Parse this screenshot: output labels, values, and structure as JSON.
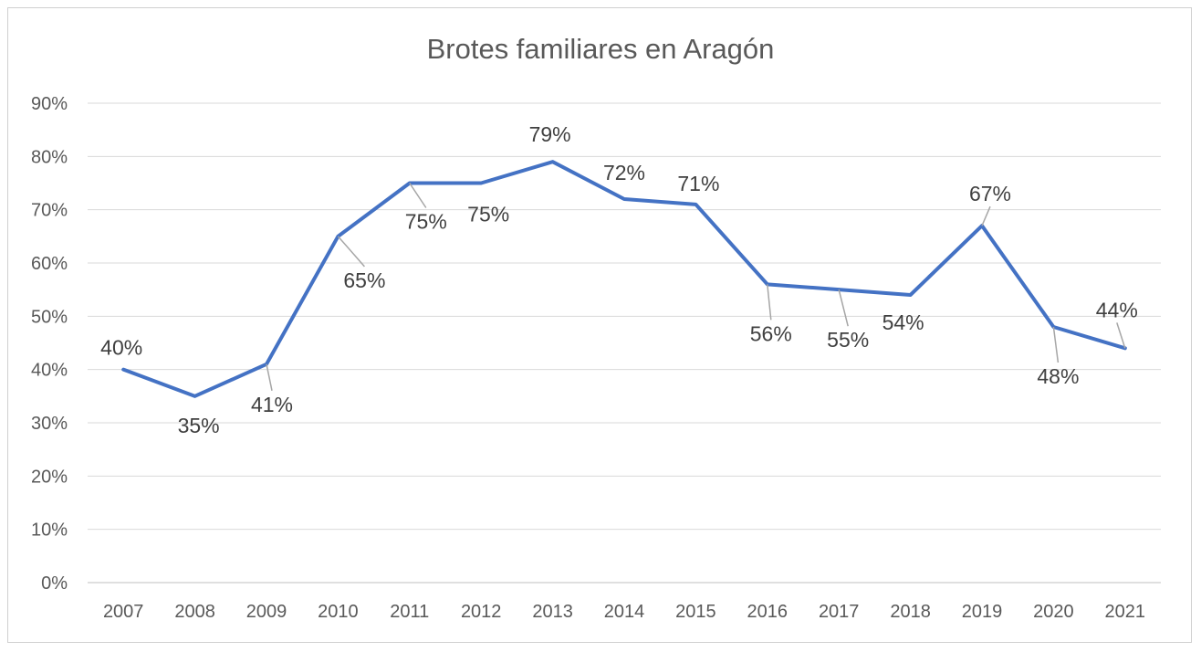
{
  "chart_data": {
    "type": "line",
    "title": "Brotes familiares en Aragón",
    "categories": [
      "2007",
      "2008",
      "2009",
      "2010",
      "2011",
      "2012",
      "2013",
      "2014",
      "2015",
      "2016",
      "2017",
      "2018",
      "2019",
      "2020",
      "2021"
    ],
    "series": [
      {
        "values": [
          0.4,
          0.35,
          0.41,
          0.65,
          0.75,
          0.75,
          0.79,
          0.72,
          0.71,
          0.56,
          0.55,
          0.54,
          0.67,
          0.48,
          0.44
        ],
        "labels": [
          "40%",
          "35%",
          "41%",
          "65%",
          "75%",
          "75%",
          "79%",
          "72%",
          "71%",
          "56%",
          "55%",
          "54%",
          "67%",
          "48%",
          "44%"
        ],
        "color": "#4472C4"
      }
    ],
    "y_ticks": [
      "0%",
      "10%",
      "20%",
      "30%",
      "40%",
      "50%",
      "60%",
      "70%",
      "80%",
      "90%"
    ],
    "ylim": [
      0,
      0.9
    ],
    "grid": true,
    "legend": "none"
  }
}
